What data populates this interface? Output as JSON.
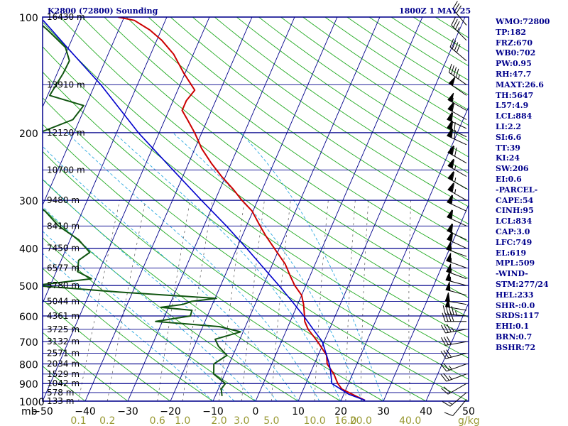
{
  "header": {
    "station": "K2800 (72800) Sounding",
    "valid_time": "1800Z  1 MAY 25"
  },
  "indices": [
    "WMO:72800",
    "TP:182",
    "FRZ:670",
    "WB0:702",
    "PW:0.95",
    "RH:47.7",
    "MAXT:26.6",
    "TH:5647",
    "L57:4.9",
    "LCL:884",
    "LI:2.2",
    "SI:6.6",
    "TT:39",
    "KI:24",
    "SW:206",
    "EI:0.6",
    "-PARCEL-",
    "CAPE:54",
    "CINH:95",
    "LCL:834",
    "CAP:3.0",
    "LFC:749",
    "EL:619",
    "MPL:509",
    "-WIND-",
    "STM:277/24",
    "HEL:233",
    "SHR-:0.0",
    "SRDS:117",
    "EHI:0.1",
    "BRN:0.7",
    "BSHR:72"
  ],
  "colors": {
    "frame": "#00008b",
    "isobar": "#00008b",
    "isotherm": "#00008b",
    "dry_adiabat": "#22aa22",
    "moist_adiabat": "#2aa8e0",
    "mixing_ratio": "#555555",
    "temperature": "#cc0000",
    "dewpoint": "#115511",
    "parcel": "#0000cc",
    "mixing_labels": "#999933",
    "wind_barbs": "#000000"
  },
  "chart_data": {
    "type": "skew-t log-p sounding",
    "x_axis": {
      "label": "mb",
      "unit": "°C",
      "ticks": [
        -50,
        -40,
        -30,
        -20,
        -10,
        0,
        10,
        20,
        30,
        40,
        50
      ],
      "range": [
        -50,
        50
      ]
    },
    "y_axis": {
      "scale": "log",
      "pressure_ticks": [
        100,
        200,
        300,
        400,
        500,
        600,
        700,
        800,
        900,
        1000
      ],
      "range": [
        100,
        1000
      ]
    },
    "mixing_ratio_axis": {
      "unit": "g/kg",
      "values": [
        "0.1",
        "0.2",
        "0.6",
        "1.0",
        "2.0",
        "3.0",
        "5.0",
        "10.0",
        "16.0",
        "20.0",
        "40.0"
      ]
    },
    "height_labels": [
      {
        "p": 100,
        "label": "16430 m"
      },
      {
        "p": 150,
        "label": "13910 m"
      },
      {
        "p": 200,
        "label": "12120 m"
      },
      {
        "p": 250,
        "label": "10700 m"
      },
      {
        "p": 300,
        "label": "9480 m"
      },
      {
        "p": 350,
        "label": "8410 m"
      },
      {
        "p": 400,
        "label": "7450 m"
      },
      {
        "p": 450,
        "label": "6577 m"
      },
      {
        "p": 500,
        "label": "5780 m"
      },
      {
        "p": 550,
        "label": "5044 m"
      },
      {
        "p": 600,
        "label": "4361 m"
      },
      {
        "p": 650,
        "label": "3725 m"
      },
      {
        "p": 700,
        "label": "3132 m"
      },
      {
        "p": 750,
        "label": "2571 m"
      },
      {
        "p": 800,
        "label": "2034 m"
      },
      {
        "p": 850,
        "label": "1529 m"
      },
      {
        "p": 900,
        "label": "1042 m"
      },
      {
        "p": 950,
        "label": "578 m"
      },
      {
        "p": 1000,
        "label": "133 m"
      }
    ],
    "series": [
      {
        "name": "temperature",
        "points": [
          [
            995,
            25.6
          ],
          [
            970,
            23
          ],
          [
            930,
            19
          ],
          [
            900,
            17.5
          ],
          [
            850,
            15.6
          ],
          [
            800,
            13
          ],
          [
            760,
            12
          ],
          [
            700,
            8.5
          ],
          [
            650,
            5
          ],
          [
            620,
            3.4
          ],
          [
            600,
            2.8
          ],
          [
            560,
            1.4
          ],
          [
            530,
            0
          ],
          [
            500,
            -2.6
          ],
          [
            470,
            -4.8
          ],
          [
            440,
            -7
          ],
          [
            400,
            -11.2
          ],
          [
            370,
            -14.6
          ],
          [
            350,
            -16.8
          ],
          [
            320,
            -20.2
          ],
          [
            300,
            -23.7
          ],
          [
            280,
            -27
          ],
          [
            260,
            -30.9
          ],
          [
            240,
            -34.7
          ],
          [
            220,
            -38.4
          ],
          [
            210,
            -40
          ],
          [
            200,
            -41.7
          ],
          [
            185,
            -44.7
          ],
          [
            175,
            -46.9
          ],
          [
            165,
            -46.9
          ],
          [
            155,
            -46
          ],
          [
            140,
            -50.3
          ],
          [
            125,
            -54.6
          ],
          [
            115,
            -58.8
          ],
          [
            108,
            -62.7
          ],
          [
            102,
            -67.3
          ],
          [
            100,
            -71.5
          ]
        ]
      },
      {
        "name": "dewpoint",
        "points": [
          [
            970,
            -8.4
          ],
          [
            930,
            -9.3
          ],
          [
            900,
            -8.9
          ],
          [
            850,
            -12.6
          ],
          [
            800,
            -13.6
          ],
          [
            760,
            -11.4
          ],
          [
            720,
            -14.3
          ],
          [
            690,
            -15.8
          ],
          [
            660,
            -10.6
          ],
          [
            640,
            -16
          ],
          [
            620,
            -31.6
          ],
          [
            600,
            -24
          ],
          [
            580,
            -24.2
          ],
          [
            570,
            -31.8
          ],
          [
            560,
            -27
          ],
          [
            550,
            -25.2
          ],
          [
            540,
            -19.7
          ],
          [
            520,
            -43.1
          ],
          [
            500,
            -63.6
          ],
          [
            480,
            -51
          ],
          [
            460,
            -55
          ],
          [
            430,
            -55.9
          ],
          [
            410,
            -54.1
          ],
          [
            380,
            -58
          ],
          [
            350,
            -64.1
          ],
          [
            320,
            -68.8
          ],
          [
            290,
            -77.3
          ],
          [
            270,
            -79.1
          ],
          [
            250,
            -79.6
          ],
          [
            230,
            -90
          ],
          [
            210,
            -82.1
          ],
          [
            185,
            -71.6
          ],
          [
            170,
            -70.5
          ],
          [
            160,
            -79.5
          ],
          [
            140,
            -78.6
          ],
          [
            130,
            -78.4
          ],
          [
            120,
            -80.7
          ],
          [
            108,
            -86.7
          ],
          [
            100,
            -91.5
          ]
        ]
      },
      {
        "name": "parcel",
        "points": [
          [
            995,
            25.6
          ],
          [
            960,
            21.2
          ],
          [
            900,
            16.1
          ],
          [
            834,
            14.5
          ],
          [
            800,
            13.5
          ],
          [
            700,
            9.6
          ],
          [
            650,
            6.2
          ],
          [
            600,
            2.6
          ],
          [
            550,
            -1.6
          ],
          [
            500,
            -6.3
          ],
          [
            450,
            -11.7
          ],
          [
            400,
            -17.7
          ],
          [
            350,
            -24.7
          ],
          [
            300,
            -33.2
          ],
          [
            250,
            -43
          ],
          [
            200,
            -54.9
          ],
          [
            150,
            -68.6
          ],
          [
            120,
            -80.3
          ],
          [
            102,
            -88.7
          ]
        ]
      }
    ],
    "wind_barbs": [
      {
        "p": 990,
        "dir": 220,
        "spd": 10
      },
      {
        "p": 950,
        "dir": 230,
        "spd": 15
      },
      {
        "p": 900,
        "dir": 240,
        "spd": 20
      },
      {
        "p": 850,
        "dir": 250,
        "spd": 25
      },
      {
        "p": 800,
        "dir": 250,
        "spd": 25
      },
      {
        "p": 750,
        "dir": 255,
        "spd": 30
      },
      {
        "p": 700,
        "dir": 260,
        "spd": 30
      },
      {
        "p": 650,
        "dir": 260,
        "spd": 35
      },
      {
        "p": 620,
        "dir": 270,
        "spd": 40
      },
      {
        "p": 600,
        "dir": 275,
        "spd": 45
      },
      {
        "p": 580,
        "dir": 280,
        "spd": 50
      },
      {
        "p": 560,
        "dir": 280,
        "spd": 50
      },
      {
        "p": 530,
        "dir": 285,
        "spd": 50
      },
      {
        "p": 500,
        "dir": 285,
        "spd": 55
      },
      {
        "p": 480,
        "dir": 290,
        "spd": 55
      },
      {
        "p": 450,
        "dir": 290,
        "spd": 55
      },
      {
        "p": 420,
        "dir": 290,
        "spd": 55
      },
      {
        "p": 400,
        "dir": 295,
        "spd": 60
      },
      {
        "p": 380,
        "dir": 295,
        "spd": 60
      },
      {
        "p": 350,
        "dir": 295,
        "spd": 60
      },
      {
        "p": 320,
        "dir": 295,
        "spd": 60
      },
      {
        "p": 300,
        "dir": 300,
        "spd": 65
      },
      {
        "p": 280,
        "dir": 300,
        "spd": 65
      },
      {
        "p": 260,
        "dir": 300,
        "spd": 65
      },
      {
        "p": 240,
        "dir": 300,
        "spd": 70
      },
      {
        "p": 215,
        "dir": 295,
        "spd": 70
      },
      {
        "p": 205,
        "dir": 295,
        "spd": 70
      },
      {
        "p": 195,
        "dir": 295,
        "spd": 60
      },
      {
        "p": 185,
        "dir": 300,
        "spd": 60
      },
      {
        "p": 175,
        "dir": 300,
        "spd": 55
      },
      {
        "p": 160,
        "dir": 305,
        "spd": 50
      },
      {
        "p": 150,
        "dir": 305,
        "spd": 45
      },
      {
        "p": 130,
        "dir": 310,
        "spd": 40
      },
      {
        "p": 115,
        "dir": 315,
        "spd": 35
      },
      {
        "p": 105,
        "dir": 320,
        "spd": 30
      }
    ]
  }
}
